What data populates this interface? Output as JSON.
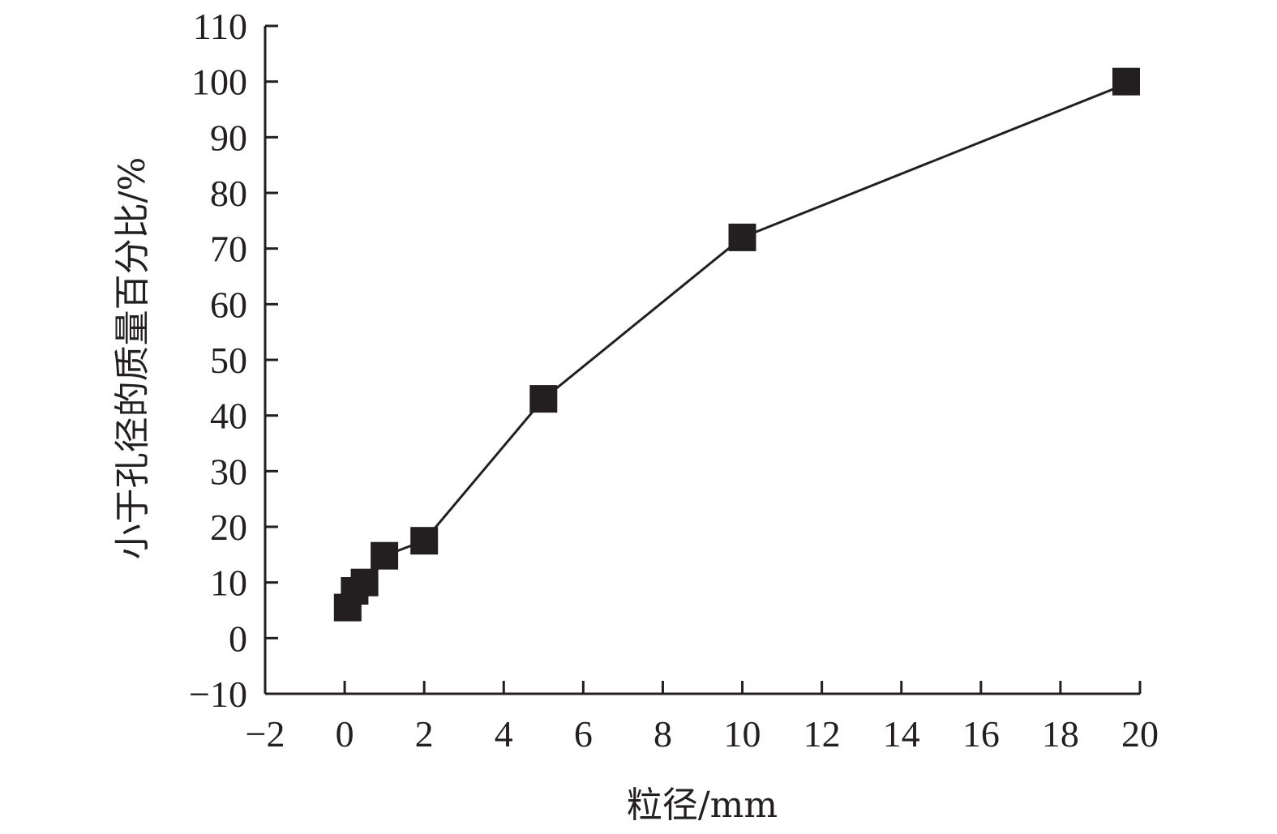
{
  "chart_data": {
    "type": "line",
    "title": "",
    "xlabel": "粒径/mm",
    "ylabel": "小于孔径的质量百分比/%",
    "xlim": [
      -2,
      20
    ],
    "ylim": [
      -10,
      110
    ],
    "x_ticks": [
      -2,
      0,
      2,
      4,
      6,
      8,
      10,
      12,
      14,
      16,
      18,
      20
    ],
    "y_ticks": [
      -10,
      0,
      10,
      20,
      30,
      40,
      50,
      60,
      70,
      80,
      90,
      100,
      110
    ],
    "x_tick_labels": [
      "−2",
      "0",
      "2",
      "4",
      "6",
      "8",
      "10",
      "12",
      "14",
      "16",
      "18",
      "20"
    ],
    "y_tick_labels": [
      "−10",
      "0",
      "10",
      "20",
      "30",
      "40",
      "50",
      "60",
      "70",
      "80",
      "90",
      "100",
      "110"
    ],
    "grid": false,
    "legend": "none",
    "marker": "square",
    "color": "#231f20",
    "series": [
      {
        "x": [
          0.075,
          0.25,
          0.5,
          1,
          2,
          5,
          10,
          19.8
        ],
        "y": [
          5.5,
          8.5,
          10,
          14.8,
          17.5,
          43,
          72,
          100
        ]
      }
    ]
  }
}
